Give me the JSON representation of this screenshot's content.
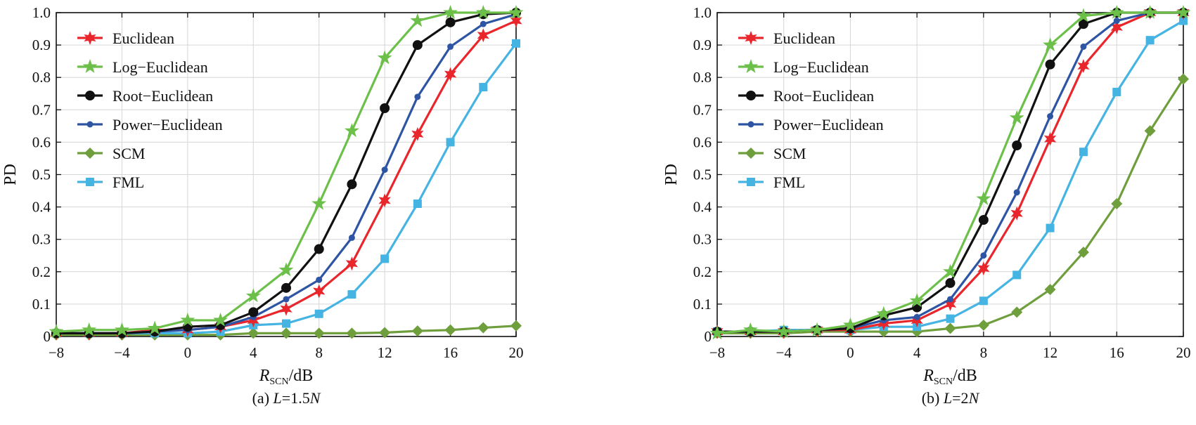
{
  "colors": {
    "Euclidean": "#e8262b",
    "Log-Euclidean": "#6cc04a",
    "Root-Euclidean": "#111111",
    "Power-Euclidean": "#2e55a4",
    "SCM": "#6f9e3c",
    "FML": "#45b4e3"
  },
  "chart_data": [
    {
      "type": "line",
      "caption_prefix": "(a) ",
      "caption_var": "L",
      "caption_value": "=1.5",
      "caption_unit": "N",
      "xlabel_main": "R",
      "xlabel_sub": "SCN",
      "xlabel_unit": "/dB",
      "ylabel": "PD",
      "xlim": [
        -8,
        20
      ],
      "ylim": [
        0,
        1
      ],
      "xticks": [
        -8,
        -4,
        0,
        4,
        8,
        12,
        16,
        20
      ],
      "xtick_labels": [
        "−8",
        "−4",
        "0",
        "4",
        "8",
        "12",
        "16",
        "20"
      ],
      "yticks": [
        0,
        0.1,
        0.2,
        0.3,
        0.4,
        0.5,
        0.6,
        0.7,
        0.8,
        0.9,
        1.0
      ],
      "ytick_labels": [
        "0",
        "0.1",
        "0.2",
        "0.3",
        "0.4",
        "0.5",
        "0.6",
        "0.7",
        "0.8",
        "0.9",
        "1.0"
      ],
      "grid": true,
      "legend_position": "top-left",
      "x": [
        -8,
        -6,
        -4,
        -2,
        0,
        2,
        4,
        6,
        8,
        10,
        12,
        14,
        16,
        18,
        20
      ],
      "series": [
        {
          "name": "Euclidean",
          "marker": "star6",
          "values": [
            0.01,
            0.01,
            0.01,
            0.02,
            0.02,
            0.03,
            0.05,
            0.085,
            0.14,
            0.225,
            0.42,
            0.625,
            0.81,
            0.93,
            0.975
          ]
        },
        {
          "name": "Log−Euclidean",
          "marker": "star5",
          "values": [
            0.015,
            0.02,
            0.02,
            0.025,
            0.05,
            0.05,
            0.125,
            0.205,
            0.41,
            0.635,
            0.86,
            0.975,
            1.0,
            1.0,
            1.0
          ]
        },
        {
          "name": "Root−Euclidean",
          "marker": "circle",
          "values": [
            0.01,
            0.01,
            0.01,
            0.015,
            0.03,
            0.035,
            0.075,
            0.15,
            0.27,
            0.47,
            0.705,
            0.9,
            0.97,
            0.995,
            1.0
          ]
        },
        {
          "name": "Power−Euclidean",
          "marker": "dot",
          "values": [
            0.01,
            0.01,
            0.01,
            0.015,
            0.02,
            0.03,
            0.06,
            0.115,
            0.175,
            0.305,
            0.515,
            0.74,
            0.895,
            0.965,
            0.995
          ]
        },
        {
          "name": "SCM",
          "marker": "diamond",
          "values": [
            0.005,
            0.005,
            0.005,
            0.005,
            0.005,
            0.005,
            0.01,
            0.01,
            0.01,
            0.01,
            0.012,
            0.017,
            0.02,
            0.027,
            0.033
          ]
        },
        {
          "name": "FML",
          "marker": "square",
          "values": [
            0.01,
            0.01,
            0.01,
            0.01,
            0.01,
            0.015,
            0.035,
            0.04,
            0.07,
            0.13,
            0.24,
            0.41,
            0.6,
            0.77,
            0.905
          ]
        }
      ]
    },
    {
      "type": "line",
      "caption_prefix": "(b) ",
      "caption_var": "L",
      "caption_value": "=2",
      "caption_unit": "N",
      "xlabel_main": "R",
      "xlabel_sub": "SCN",
      "xlabel_unit": "/dB",
      "ylabel": "PD",
      "xlim": [
        -8,
        20
      ],
      "ylim": [
        0,
        1
      ],
      "xticks": [
        -8,
        -4,
        0,
        4,
        8,
        12,
        16,
        20
      ],
      "xtick_labels": [
        "−8",
        "−4",
        "0",
        "4",
        "8",
        "12",
        "16",
        "20"
      ],
      "yticks": [
        0,
        0.1,
        0.2,
        0.3,
        0.4,
        0.5,
        0.6,
        0.7,
        0.8,
        0.9,
        1.0
      ],
      "ytick_labels": [
        "0",
        "0.1",
        "0.2",
        "0.3",
        "0.4",
        "0.5",
        "0.6",
        "0.7",
        "0.8",
        "0.9",
        "1.0"
      ],
      "grid": true,
      "legend_position": "top-left",
      "x": [
        -8,
        -6,
        -4,
        -2,
        0,
        2,
        4,
        6,
        8,
        10,
        12,
        14,
        16,
        18,
        20
      ],
      "series": [
        {
          "name": "Euclidean",
          "marker": "star6",
          "values": [
            0.015,
            0.015,
            0.015,
            0.02,
            0.02,
            0.04,
            0.05,
            0.1,
            0.21,
            0.38,
            0.61,
            0.835,
            0.955,
            1.0,
            1.0
          ]
        },
        {
          "name": "Log−Euclidean",
          "marker": "star5",
          "values": [
            0.01,
            0.02,
            0.015,
            0.02,
            0.035,
            0.07,
            0.11,
            0.2,
            0.425,
            0.675,
            0.9,
            0.99,
            1.0,
            1.0,
            1.0
          ]
        },
        {
          "name": "Root−Euclidean",
          "marker": "circle",
          "values": [
            0.015,
            0.015,
            0.015,
            0.02,
            0.025,
            0.065,
            0.09,
            0.165,
            0.36,
            0.59,
            0.84,
            0.965,
            1.0,
            1.0,
            1.0
          ]
        },
        {
          "name": "Power−Euclidean",
          "marker": "dot",
          "values": [
            0.015,
            0.015,
            0.015,
            0.02,
            0.025,
            0.05,
            0.06,
            0.115,
            0.25,
            0.445,
            0.68,
            0.895,
            0.975,
            1.0,
            1.0
          ]
        },
        {
          "name": "SCM",
          "marker": "diamond",
          "values": [
            0.01,
            0.01,
            0.01,
            0.015,
            0.015,
            0.015,
            0.015,
            0.025,
            0.035,
            0.075,
            0.145,
            0.26,
            0.41,
            0.635,
            0.795
          ]
        },
        {
          "name": "FML",
          "marker": "square",
          "values": [
            0.015,
            0.015,
            0.02,
            0.02,
            0.02,
            0.03,
            0.03,
            0.055,
            0.11,
            0.19,
            0.335,
            0.57,
            0.755,
            0.915,
            0.975
          ]
        }
      ]
    }
  ]
}
